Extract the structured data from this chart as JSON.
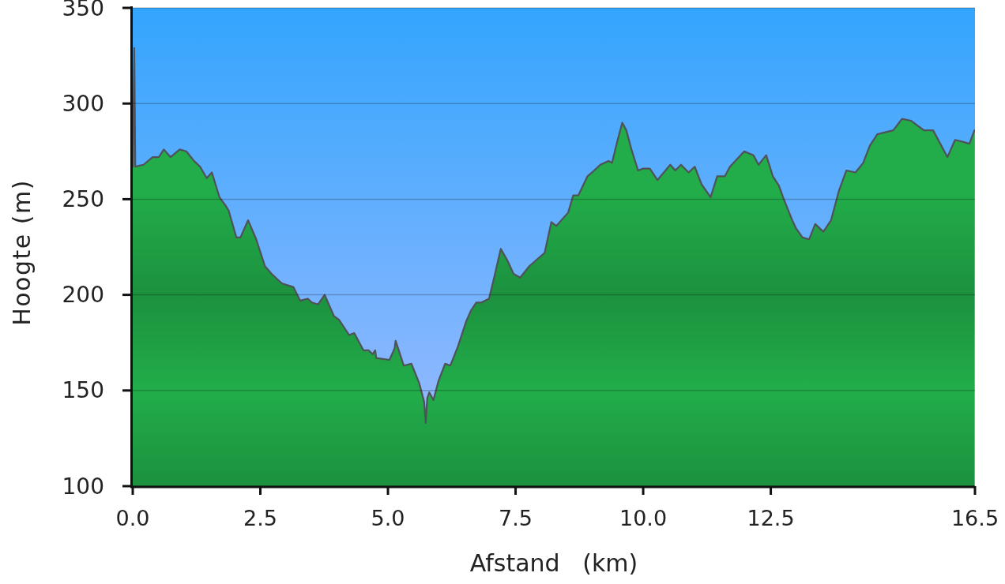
{
  "chart_data": {
    "type": "area",
    "xlabel": "Afstand   (km)",
    "ylabel": "Hoogte (m)",
    "x": [
      0,
      0.03,
      0.05,
      0.21,
      0.39,
      0.51,
      0.61,
      0.74,
      0.92,
      1.05,
      1.2,
      1.32,
      1.45,
      1.55,
      1.7,
      1.81,
      1.88,
      2.03,
      2.11,
      2.26,
      2.42,
      2.59,
      2.72,
      2.92,
      3.15,
      3.28,
      3.43,
      3.51,
      3.63,
      3.76,
      3.94,
      4.04,
      4.24,
      4.34,
      4.52,
      4.62,
      4.7,
      4.75,
      4.77,
      5.03,
      5.13,
      5.15,
      5.31,
      5.46,
      5.61,
      5.71,
      5.74,
      5.77,
      5.81,
      5.89,
      5.99,
      6.12,
      6.22,
      6.37,
      6.53,
      6.63,
      6.73,
      6.83,
      6.98,
      7.08,
      7.21,
      7.34,
      7.46,
      7.59,
      7.77,
      8.07,
      8.2,
      8.3,
      8.43,
      8.53,
      8.63,
      8.73,
      8.91,
      9.04,
      9.16,
      9.32,
      9.39,
      9.49,
      9.59,
      9.67,
      9.77,
      9.9,
      10.0,
      10.13,
      10.28,
      10.53,
      10.63,
      10.74,
      10.89,
      11.01,
      11.14,
      11.32,
      11.45,
      11.6,
      11.7,
      11.98,
      12.16,
      12.26,
      12.41,
      12.54,
      12.66,
      12.74,
      12.92,
      12.99,
      13.12,
      13.25,
      13.37,
      13.53,
      13.68,
      13.83,
      13.98,
      14.16,
      14.31,
      14.44,
      14.59,
      14.74,
      14.9,
      15.07,
      15.25,
      15.5,
      15.68,
      15.96,
      16.11,
      16.26,
      16.39,
      16.49
    ],
    "values": [
      267,
      329,
      267,
      268,
      272,
      272,
      276,
      272,
      276,
      275,
      270,
      267,
      261,
      264,
      251,
      247,
      244,
      230,
      230,
      239,
      229,
      215,
      211,
      206,
      204,
      197,
      198,
      196,
      195,
      200,
      189,
      187,
      179,
      180,
      171,
      171,
      169,
      171,
      167,
      166,
      172,
      176,
      163,
      164,
      154,
      144,
      133,
      146,
      149,
      145,
      155,
      164,
      163,
      173,
      186,
      192,
      196,
      196,
      198,
      209,
      224,
      218,
      211,
      209,
      215,
      222,
      238,
      236,
      240,
      243,
      252,
      252,
      262,
      265,
      268,
      270,
      269,
      280,
      290,
      286,
      276,
      265,
      266,
      266,
      260,
      268,
      265,
      268,
      264,
      267,
      258,
      251,
      262,
      262,
      267,
      275,
      273,
      268,
      273,
      262,
      257,
      251,
      239,
      235,
      230,
      229,
      237,
      233,
      239,
      254,
      265,
      264,
      269,
      278,
      284,
      285,
      286,
      292,
      291,
      286,
      286,
      272,
      281,
      280,
      279,
      286
    ],
    "color": "#22ad4a",
    "xlim": [
      0,
      16.5
    ],
    "ylim": [
      100,
      350
    ],
    "xticks": [
      {
        "value": 0,
        "label": "0.0"
      },
      2.5,
      {
        "value": 5,
        "label": "5.0"
      },
      7.5,
      {
        "value": 10,
        "label": "10.0"
      },
      12.5,
      16.5
    ],
    "yticks": [
      100,
      150,
      200,
      250,
      300,
      350
    ],
    "grid": "y"
  }
}
